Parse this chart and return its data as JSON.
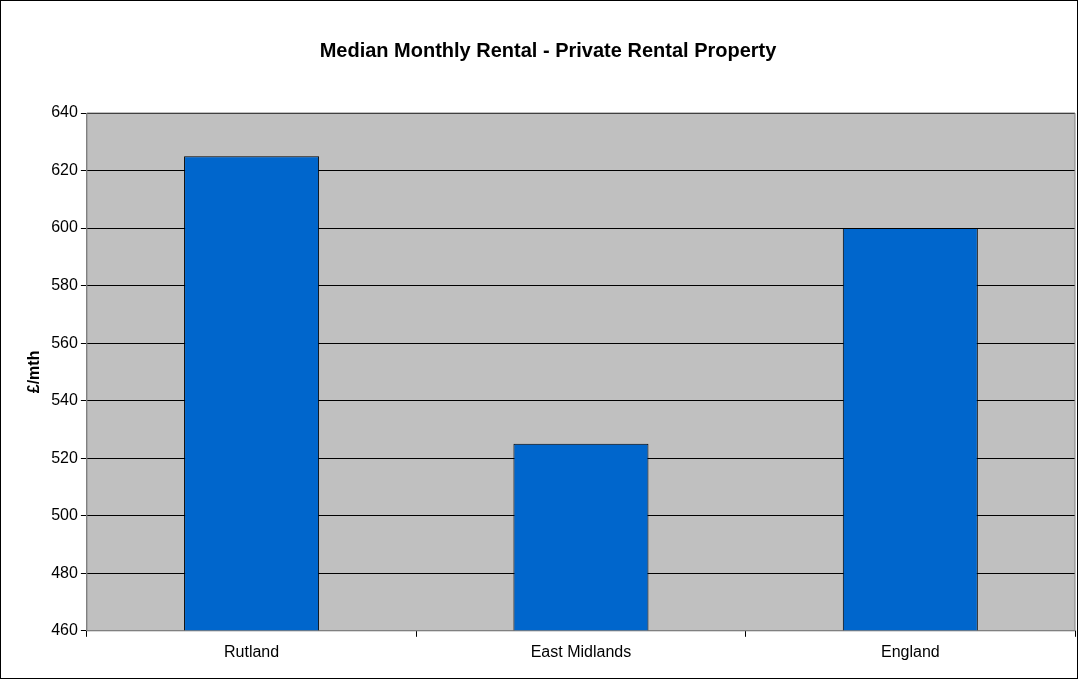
{
  "chart_data": {
    "type": "bar",
    "title": "Median Monthly Rental - Private Rental Property",
    "ylabel": "£/mth",
    "categories": [
      "Rutland",
      "East Midlands",
      "England"
    ],
    "values": [
      625,
      525,
      600
    ],
    "color": "#0066cc",
    "ylim": [
      460,
      640
    ],
    "yticks": [
      460,
      480,
      500,
      520,
      540,
      560,
      580,
      600,
      620,
      640
    ],
    "grid": "y"
  }
}
